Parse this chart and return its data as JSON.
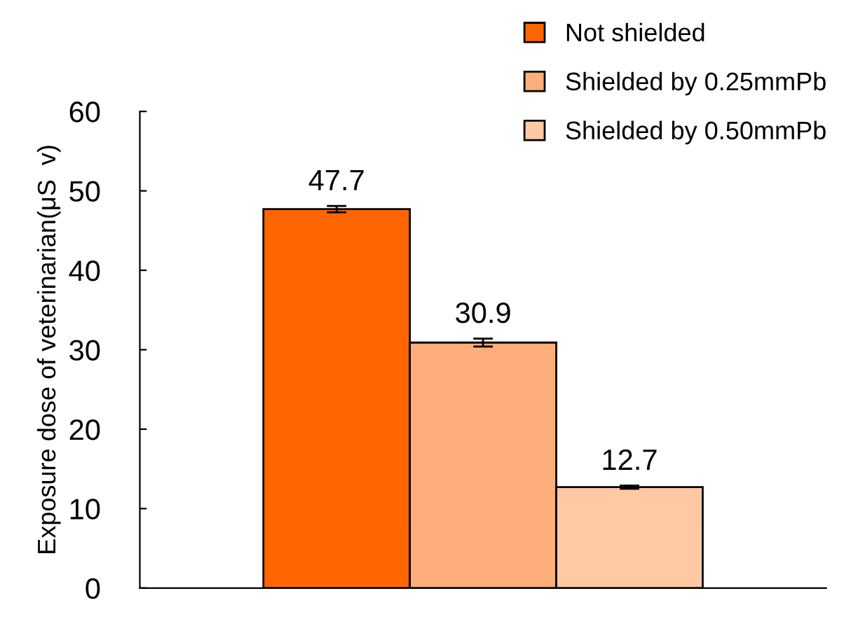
{
  "chart_data": {
    "type": "bar",
    "ylabel": "Exposure dose of veterinarian(μS  v)",
    "categories": [
      null
    ],
    "series": [
      {
        "name": "Not shielded",
        "color": "#ff6600",
        "values": [
          47.7
        ],
        "errors": [
          0.4
        ]
      },
      {
        "name": "Shielded by 0.25mmPb",
        "color": "#fdae7a",
        "values": [
          30.9
        ],
        "errors": [
          0.5
        ]
      },
      {
        "name": "Shielded by 0.50mmPb",
        "color": "#ffc9a3",
        "values": [
          12.7
        ],
        "errors": [
          0.2
        ]
      }
    ],
    "ylim": [
      0,
      60
    ],
    "yticks": [
      0,
      10,
      20,
      30,
      40,
      50,
      60
    ],
    "data_labels": true,
    "grid": false,
    "legend": "top right"
  }
}
